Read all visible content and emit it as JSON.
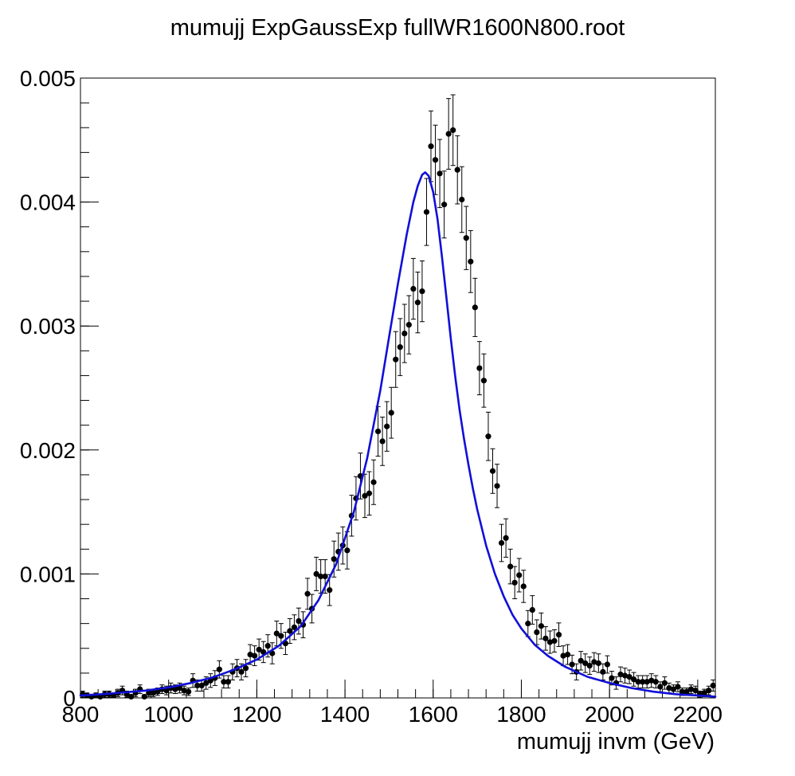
{
  "chart_data": {
    "type": "scatter",
    "title": "mumujj ExpGaussExp fullWR1600N800.root",
    "xlabel": "mumujj invm (GeV)",
    "ylabel": "",
    "xlim": [
      800,
      2240
    ],
    "ylim": [
      0,
      0.005
    ],
    "x_ticks": [
      {
        "value": 800,
        "label": "800"
      },
      {
        "value": 1000,
        "label": "1000"
      },
      {
        "value": 1200,
        "label": "1200"
      },
      {
        "value": 1400,
        "label": "1400"
      },
      {
        "value": 1600,
        "label": "1600"
      },
      {
        "value": 1800,
        "label": "1800"
      },
      {
        "value": 2000,
        "label": "2000"
      },
      {
        "value": 2200,
        "label": "2200"
      }
    ],
    "y_ticks": [
      {
        "value": 0,
        "label": "0"
      },
      {
        "value": 0.001,
        "label": "0.001"
      },
      {
        "value": 0.002,
        "label": "0.002"
      },
      {
        "value": 0.003,
        "label": "0.003"
      },
      {
        "value": 0.004,
        "label": "0.004"
      },
      {
        "value": 0.005,
        "label": "0.005"
      }
    ],
    "grid": false,
    "series": [
      {
        "kind": "data-points-with-errors",
        "color": "#000000",
        "x": [
          805,
          815,
          825,
          835,
          845,
          855,
          865,
          875,
          885,
          895,
          905,
          915,
          925,
          935,
          945,
          955,
          965,
          975,
          985,
          995,
          1005,
          1015,
          1025,
          1035,
          1045,
          1055,
          1065,
          1075,
          1085,
          1095,
          1105,
          1115,
          1125,
          1135,
          1145,
          1155,
          1165,
          1175,
          1185,
          1195,
          1205,
          1215,
          1225,
          1235,
          1245,
          1255,
          1265,
          1275,
          1285,
          1295,
          1305,
          1315,
          1325,
          1335,
          1345,
          1355,
          1365,
          1375,
          1385,
          1395,
          1405,
          1415,
          1425,
          1435,
          1445,
          1455,
          1465,
          1475,
          1485,
          1495,
          1505,
          1515,
          1525,
          1535,
          1545,
          1555,
          1565,
          1575,
          1585,
          1595,
          1605,
          1615,
          1625,
          1635,
          1645,
          1655,
          1665,
          1675,
          1685,
          1695,
          1705,
          1715,
          1725,
          1735,
          1745,
          1755,
          1765,
          1775,
          1785,
          1795,
          1805,
          1815,
          1825,
          1835,
          1845,
          1855,
          1865,
          1875,
          1885,
          1895,
          1905,
          1915,
          1925,
          1935,
          1945,
          1955,
          1965,
          1975,
          1985,
          1995,
          2005,
          2015,
          2025,
          2035,
          2045,
          2055,
          2065,
          2075,
          2085,
          2095,
          2105,
          2115,
          2125,
          2135,
          2145,
          2155,
          2165,
          2175,
          2185,
          2195,
          2205,
          2215,
          2225,
          2235
        ],
        "y": [
          3e-05,
          2e-05,
          1e-05,
          2e-05,
          1e-05,
          3e-05,
          3e-05,
          2e-05,
          4e-05,
          6e-05,
          3e-05,
          1e-05,
          4e-05,
          7e-05,
          1e-05,
          4e-05,
          4e-05,
          5e-05,
          7e-05,
          6e-05,
          8e-05,
          7e-05,
          8e-05,
          6e-05,
          5e-05,
          0.00014,
          0.0001,
          0.0001,
          0.00012,
          0.00014,
          0.00016,
          0.00023,
          0.00013,
          0.00013,
          0.00021,
          0.00024,
          0.00021,
          0.00024,
          0.00035,
          0.00034,
          0.00039,
          0.00037,
          0.00042,
          0.00036,
          0.00052,
          0.0005,
          0.00044,
          0.00054,
          0.00057,
          0.00062,
          0.00059,
          0.00084,
          0.00072,
          0.001,
          0.00098,
          0.00098,
          0.00087,
          0.00112,
          0.00118,
          0.00123,
          0.00119,
          0.00147,
          0.00161,
          0.00179,
          0.00163,
          0.00165,
          0.00174,
          0.00215,
          0.00207,
          0.00219,
          0.0023,
          0.00273,
          0.00283,
          0.00294,
          0.00301,
          0.0033,
          0.00319,
          0.00328,
          0.00392,
          0.00445,
          0.00434,
          0.00423,
          0.00398,
          0.00455,
          0.00458,
          0.00426,
          0.00402,
          0.00371,
          0.00352,
          0.00315,
          0.00266,
          0.00256,
          0.00211,
          0.00183,
          0.00171,
          0.00125,
          0.00129,
          0.00106,
          0.00093,
          0.00099,
          0.0009,
          0.0006,
          0.00071,
          0.00053,
          0.00058,
          0.00048,
          0.00045,
          0.00046,
          0.00051,
          0.00034,
          0.00035,
          0.00027,
          0.00021,
          0.0003,
          0.00028,
          0.00026,
          0.00029,
          0.00028,
          0.00021,
          0.00027,
          0.00016,
          0.00012,
          0.00019,
          0.00018,
          0.00017,
          0.00015,
          0.00013,
          0.00013,
          0.00013,
          0.00014,
          0.00013,
          9e-05,
          0.00012,
          8e-05,
          7e-05,
          9e-05,
          5e-05,
          5e-05,
          7e-05,
          6e-05,
          3e-05,
          4e-05,
          6e-05,
          0.0001
        ],
        "err": [
          2.5e-05,
          2e-05,
          1.5e-05,
          2e-05,
          1.5e-05,
          2.5e-05,
          2.5e-05,
          2e-05,
          3e-05,
          3.5e-05,
          2.5e-05,
          1.5e-05,
          3e-05,
          3.5e-05,
          1.5e-05,
          3e-05,
          3e-05,
          3e-05,
          3.5e-05,
          3.5e-05,
          4e-05,
          3.5e-05,
          4e-05,
          3.5e-05,
          3e-05,
          5.5e-05,
          4.5e-05,
          4.5e-05,
          5e-05,
          5.5e-05,
          6e-05,
          7e-05,
          5e-05,
          5e-05,
          6.5e-05,
          7e-05,
          6.5e-05,
          7e-05,
          8e-05,
          8e-05,
          8.5e-05,
          8.5e-05,
          9e-05,
          8.5e-05,
          0.0001,
          0.0001,
          9e-05,
          0.0001,
          0.0001,
          0.000105,
          0.000105,
          0.000125,
          0.000115,
          0.000135,
          0.000135,
          0.000135,
          0.000125,
          0.000145,
          0.00015,
          0.00015,
          0.00015,
          0.000165,
          0.000175,
          0.000185,
          0.000175,
          0.000175,
          0.00018,
          0.0002,
          0.000195,
          0.0002,
          0.000205,
          0.000225,
          0.00023,
          0.000235,
          0.000235,
          0.000245,
          0.000245,
          0.000245,
          0.00027,
          0.000285,
          0.00028,
          0.000275,
          0.00027,
          0.000285,
          0.000285,
          0.000275,
          0.000265,
          0.000255,
          0.00025,
          0.000235,
          0.000215,
          0.000215,
          0.000195,
          0.00018,
          0.000175,
          0.00015,
          0.000155,
          0.00014,
          0.00013,
          0.000135,
          0.00013,
          0.000105,
          0.000115,
          0.0001,
          0.000105,
          9.5e-05,
          9e-05,
          9e-05,
          9.5e-05,
          8e-05,
          8e-05,
          7.5e-05,
          6.5e-05,
          7.5e-05,
          7.5e-05,
          7e-05,
          7.5e-05,
          7.5e-05,
          6.5e-05,
          7e-05,
          5.5e-05,
          5e-05,
          6e-05,
          6e-05,
          5.5e-05,
          5.5e-05,
          5e-05,
          5e-05,
          5e-05,
          5.5e-05,
          5e-05,
          4e-05,
          5e-05,
          4e-05,
          3.5e-05,
          4e-05,
          3e-05,
          3e-05,
          3.5e-05,
          3.5e-05,
          2.5e-05,
          3e-05,
          3.5e-05,
          4.5e-05
        ]
      },
      {
        "kind": "fit-curve",
        "color": "#1010d8",
        "x": [
          800,
          850,
          900,
          950,
          1000,
          1050,
          1100,
          1150,
          1200,
          1250,
          1300,
          1340,
          1380,
          1420,
          1450,
          1480,
          1500,
          1520,
          1540,
          1555,
          1565,
          1575,
          1582,
          1590,
          1600,
          1610,
          1620,
          1630,
          1640,
          1650,
          1660,
          1670,
          1680,
          1690,
          1700,
          1720,
          1740,
          1760,
          1780,
          1800,
          1830,
          1860,
          1900,
          1950,
          2000,
          2050,
          2100,
          2150,
          2200,
          2240
        ],
        "y": [
          2e-05,
          3e-05,
          4.5e-05,
          6e-05,
          8.5e-05,
          0.00012,
          0.000165,
          0.00023,
          0.00031,
          0.00042,
          0.00058,
          0.00079,
          0.00108,
          0.0015,
          0.00193,
          0.00248,
          0.00291,
          0.00334,
          0.00374,
          0.004,
          0.00413,
          0.00422,
          0.00424,
          0.00421,
          0.00408,
          0.00386,
          0.00356,
          0.00323,
          0.0029,
          0.00259,
          0.00232,
          0.00209,
          0.00188,
          0.00169,
          0.00152,
          0.00123,
          0.001,
          0.00082,
          0.00067,
          0.00056,
          0.00043,
          0.00034,
          0.00025,
          0.00017,
          0.00012,
          8e-05,
          5e-05,
          3e-05,
          2e-05,
          1e-05
        ]
      }
    ]
  }
}
